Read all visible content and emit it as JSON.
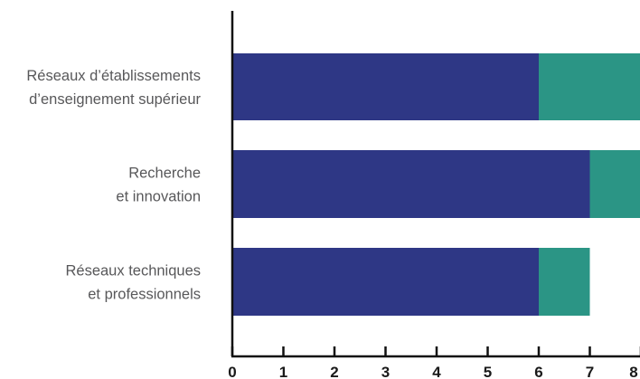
{
  "chart_data": {
    "type": "bar",
    "orientation": "horizontal",
    "stacked": true,
    "categories": [
      [
        "Réseaux d’établissements",
        "d’enseignement supérieur"
      ],
      [
        "Recherche",
        "et innovation"
      ],
      [
        "Réseaux techniques",
        "et professionnels"
      ]
    ],
    "series": [
      {
        "values": [
          6,
          7,
          6
        ],
        "color": "#2e3785"
      },
      {
        "values": [
          2,
          1,
          1
        ],
        "color": "#2b9585"
      }
    ],
    "x_ticks": [
      "0",
      "1",
      "2",
      "3",
      "4",
      "5",
      "6",
      "7",
      "8"
    ],
    "xlim": [
      0,
      8
    ],
    "title": "",
    "xlabel": "",
    "ylabel": "",
    "grid": false,
    "legend": "none"
  }
}
